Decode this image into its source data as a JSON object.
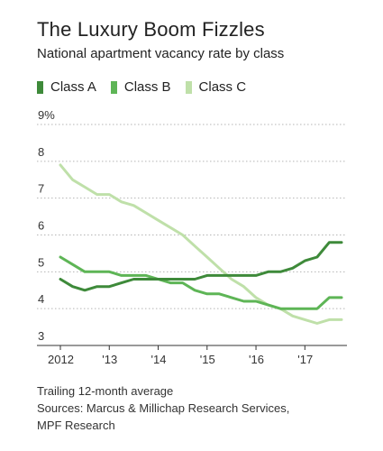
{
  "chart_data": {
    "type": "line",
    "title": "The Luxury Boom Fizzles",
    "subtitle": "National apartment vacancy rate by class",
    "xlabel": "",
    "ylabel": "",
    "x_tick_labels": [
      "2012",
      "'13",
      "'14",
      "'15",
      "'16",
      "'17"
    ],
    "x_ticks": [
      2012,
      2013,
      2014,
      2015,
      2016,
      2017
    ],
    "xlim": [
      2012,
      2017.75
    ],
    "ylim": [
      3,
      9
    ],
    "y_ticks": [
      3,
      4,
      5,
      6,
      7,
      8,
      9
    ],
    "y_tick_labels": [
      "3",
      "4",
      "5",
      "6",
      "7",
      "8",
      "9%"
    ],
    "grid": "horizontal dotted",
    "legend_position": "top-left",
    "series": [
      {
        "name": "Class A",
        "color": "#3e8a3a",
        "x": [
          2012,
          2012.25,
          2012.5,
          2012.75,
          2013,
          2013.25,
          2013.5,
          2013.75,
          2014,
          2014.25,
          2014.5,
          2014.75,
          2015,
          2015.25,
          2015.5,
          2015.75,
          2016,
          2016.25,
          2016.5,
          2016.75,
          2017,
          2017.25,
          2017.5,
          2017.75
        ],
        "values": [
          4.8,
          4.6,
          4.5,
          4.6,
          4.6,
          4.7,
          4.8,
          4.8,
          4.8,
          4.8,
          4.8,
          4.8,
          4.9,
          4.9,
          4.9,
          4.9,
          4.9,
          5.0,
          5.0,
          5.1,
          5.3,
          5.4,
          5.8,
          5.8
        ]
      },
      {
        "name": "Class B",
        "color": "#5eb556",
        "x": [
          2012,
          2012.25,
          2012.5,
          2012.75,
          2013,
          2013.25,
          2013.5,
          2013.75,
          2014,
          2014.25,
          2014.5,
          2014.75,
          2015,
          2015.25,
          2015.5,
          2015.75,
          2016,
          2016.25,
          2016.5,
          2016.75,
          2017,
          2017.25,
          2017.5,
          2017.75
        ],
        "values": [
          5.4,
          5.2,
          5.0,
          5.0,
          5.0,
          4.9,
          4.9,
          4.9,
          4.8,
          4.7,
          4.7,
          4.5,
          4.4,
          4.4,
          4.3,
          4.2,
          4.2,
          4.1,
          4.0,
          4.0,
          4.0,
          4.0,
          4.3,
          4.3
        ]
      },
      {
        "name": "Class C",
        "color": "#bfe0a9",
        "x": [
          2012,
          2012.25,
          2012.5,
          2012.75,
          2013,
          2013.25,
          2013.5,
          2013.75,
          2014,
          2014.25,
          2014.5,
          2014.75,
          2015,
          2015.25,
          2015.5,
          2015.75,
          2016,
          2016.25,
          2016.5,
          2016.75,
          2017,
          2017.25,
          2017.5,
          2017.75
        ],
        "values": [
          7.9,
          7.5,
          7.3,
          7.1,
          7.1,
          6.9,
          6.8,
          6.6,
          6.4,
          6.2,
          6.0,
          5.7,
          5.4,
          5.1,
          4.8,
          4.6,
          4.3,
          4.1,
          4.0,
          3.8,
          3.7,
          3.6,
          3.7,
          3.7
        ]
      }
    ],
    "notes": "Trailing 12-month average",
    "sources": "Sources: Marcus & Millichap Research Services, MPF Research"
  },
  "footer": {
    "line1": "Trailing 12-month average",
    "line2": "Sources: Marcus & Millichap Research Services,",
    "line3": "MPF Research"
  }
}
